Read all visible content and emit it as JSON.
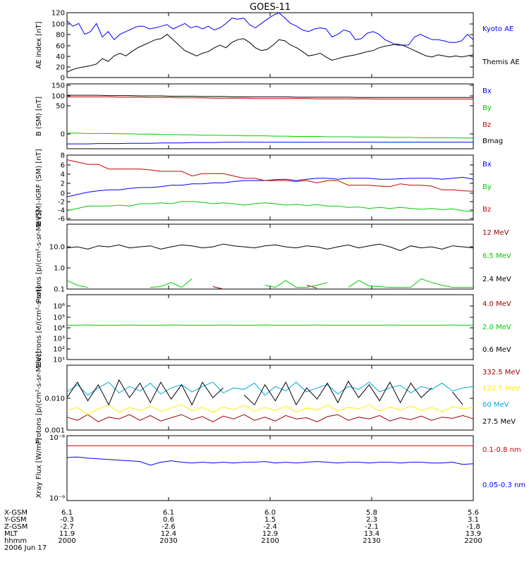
{
  "title": "GOES-11",
  "colors": {
    "black": "#000000",
    "blue": "#0000ff",
    "green": "#00cc00",
    "red": "#cc0000",
    "darkred": "#990000",
    "yellow": "#ffee00",
    "cyan": "#00aadd"
  },
  "x_axis": {
    "ticks": [
      "2000",
      "2030",
      "2100",
      "2130",
      "2200"
    ],
    "range_hhmm": [
      2000,
      2200
    ],
    "row_labels": [
      "X-GSM",
      "Y-GSM",
      "Z-GSM",
      "MLT",
      "hhmm",
      "2006 Jun 17"
    ],
    "rows": {
      "x_gsm": [
        "6.1",
        "6.1",
        "6.0",
        "5.8",
        "5.6"
      ],
      "y_gsm": [
        "-0.3",
        "0.6",
        "1.5",
        "2.3",
        "3.1"
      ],
      "z_gsm": [
        "-2.7",
        "-2.6",
        "-2.4",
        "-2.1",
        "-1.8"
      ],
      "mlt": [
        "11.9",
        "12.4",
        "12.9",
        "13.4",
        "13.9"
      ],
      "hhmm": [
        "2000",
        "2030",
        "2100",
        "2130",
        "2200"
      ]
    }
  },
  "chart_data": [
    {
      "type": "line",
      "ylabel": "AE index [nT]",
      "ylim": [
        0,
        120
      ],
      "yticks": [
        "0",
        "20",
        "40",
        "60",
        "80",
        "100",
        "120"
      ],
      "series": [
        {
          "name": "Kyoto AE",
          "color": "#0000ff",
          "values": [
            105,
            95,
            100,
            80,
            85,
            100,
            75,
            85,
            70,
            80,
            85,
            90,
            95,
            95,
            90,
            92,
            95,
            98,
            90,
            95,
            100,
            92,
            95,
            90,
            95,
            88,
            92,
            100,
            110,
            108,
            110,
            98,
            92,
            100,
            108,
            115,
            120,
            110,
            100,
            95,
            88,
            85,
            90,
            92,
            90,
            75,
            80,
            88,
            85,
            70,
            72,
            82,
            85,
            80,
            70,
            65,
            60,
            60,
            60,
            75,
            80,
            75,
            70,
            70,
            68,
            65,
            65,
            68,
            80,
            70
          ]
        },
        {
          "name": "Themis AE",
          "color": "#000000",
          "values": [
            10,
            15,
            18,
            20,
            22,
            25,
            35,
            30,
            40,
            45,
            40,
            48,
            55,
            60,
            65,
            70,
            72,
            80,
            70,
            60,
            50,
            45,
            40,
            45,
            48,
            55,
            60,
            55,
            65,
            70,
            72,
            65,
            55,
            50,
            52,
            60,
            70,
            68,
            60,
            55,
            48,
            40,
            42,
            45,
            38,
            32,
            35,
            38,
            40,
            42,
            45,
            48,
            50,
            55,
            58,
            60,
            62,
            60,
            55,
            50,
            45,
            40,
            38,
            42,
            40,
            38,
            40,
            38,
            40,
            42
          ]
        }
      ]
    },
    {
      "type": "line",
      "ylabel": "B (SM) [nT]",
      "ylim": [
        -50,
        150
      ],
      "yticks": [
        "0",
        "50",
        "100",
        "150"
      ],
      "series": [
        {
          "name": "Bx",
          "color": "#0000ff",
          "values": [
            -35,
            -35,
            -35,
            -34,
            -34,
            -34,
            -33,
            -33,
            -33,
            -32,
            -32,
            -32,
            -31,
            -31,
            -31,
            -30,
            -30,
            -30,
            -30,
            -30,
            -30,
            -30,
            -30,
            -30,
            -30,
            -30,
            -30,
            -30,
            -30,
            -30,
            -30,
            -30,
            -30,
            -30,
            -30,
            -30,
            -30,
            -30,
            -30,
            -30
          ]
        },
        {
          "name": "By",
          "color": "#00cc00",
          "values": [
            -2,
            -2,
            -3,
            -3,
            -3,
            -4,
            -4,
            -5,
            -5,
            -6,
            -6,
            -7,
            -7,
            -8,
            -8,
            -9,
            -9,
            -10,
            -10,
            -10,
            -11,
            -11,
            -12,
            -12,
            -12,
            -13,
            -13,
            -13,
            -14,
            -14,
            -14,
            -15,
            -15,
            -15,
            -16,
            -16,
            -16,
            -16,
            -17,
            -17
          ]
        },
        {
          "name": "Bz",
          "color": "#cc0000",
          "values": [
            110,
            110,
            110,
            110,
            110,
            109,
            109,
            109,
            108,
            108,
            108,
            107,
            107,
            107,
            106,
            106,
            106,
            106,
            105,
            105,
            105,
            105,
            105,
            105,
            104,
            104,
            104,
            104,
            104,
            104,
            103,
            103,
            103,
            103,
            103,
            103,
            103,
            103,
            103,
            103
          ]
        },
        {
          "name": "Bmag",
          "color": "#000000",
          "values": [
            115,
            115,
            115,
            115,
            114,
            114,
            114,
            113,
            113,
            113,
            112,
            112,
            112,
            111,
            111,
            111,
            110,
            110,
            110,
            110,
            110,
            110,
            109,
            109,
            109,
            109,
            109,
            109,
            108,
            108,
            108,
            108,
            108,
            108,
            108,
            108,
            108,
            108,
            108,
            108
          ]
        }
      ]
    },
    {
      "type": "line",
      "ylabel": "B (SM)-IGRF (SM) [nT]",
      "ylim": [
        -6,
        8
      ],
      "yticks": [
        "-6",
        "-4",
        "-2",
        "0",
        "2",
        "4",
        "6",
        "8"
      ],
      "series": [
        {
          "name": "Bx",
          "color": "#0000ff",
          "values": [
            -1,
            -0.5,
            0,
            0.3,
            0.5,
            0.5,
            0.8,
            1,
            1,
            1.2,
            1.5,
            1.5,
            1.8,
            1.8,
            2,
            2,
            2.3,
            2.5,
            2.5,
            2.5,
            2.7,
            2.8,
            2.5,
            2.8,
            3,
            3,
            2.8,
            3,
            3,
            3,
            2.8,
            2.8,
            2.9,
            3,
            3,
            3,
            2.8,
            3,
            3.2,
            2.8
          ]
        },
        {
          "name": "By",
          "color": "#00cc00",
          "values": [
            -4,
            -3.5,
            -3,
            -3,
            -3,
            -2.8,
            -3,
            -2.5,
            -2.5,
            -2.3,
            -2.5,
            -2,
            -2,
            -2.2,
            -2.5,
            -2.3,
            -2.5,
            -2.8,
            -2.5,
            -2.3,
            -2.5,
            -2.8,
            -2.6,
            -2.9,
            -2.7,
            -3,
            -3,
            -3.3,
            -3.2,
            -3.5,
            -3.3,
            -3.5,
            -3.3,
            -3.5,
            -3.7,
            -3.5,
            -3.8,
            -3.6,
            -4,
            -4.2
          ]
        },
        {
          "name": "Bz",
          "color": "#cc0000",
          "values": [
            7,
            6.5,
            6,
            6,
            5,
            5,
            5,
            5,
            4.8,
            4.5,
            4.5,
            4.5,
            3.5,
            4,
            4,
            4,
            3.5,
            3,
            3,
            2.5,
            2.5,
            2.5,
            2.3,
            2.5,
            2,
            2.5,
            2.5,
            1.5,
            1.5,
            1.5,
            1.3,
            1.2,
            1.8,
            1.5,
            1.5,
            1.3,
            0.5,
            0.5,
            0.3,
            0.2
          ]
        }
      ]
    },
    {
      "type": "line",
      "ylabel": "Protons [p/(cm²-s-sr-MeV)]",
      "yscale": "log",
      "ylim": [
        0.1,
        100
      ],
      "yticks": [
        "0.1",
        "1.0",
        "10.0"
      ],
      "series": [
        {
          "name": "12 MeV",
          "color": "#990000",
          "values": [
            null,
            null,
            null,
            null,
            null,
            null,
            null,
            null,
            null,
            null,
            null,
            null,
            null,
            null,
            0.13,
            0.1,
            null,
            null,
            null,
            0.12,
            null,
            null,
            null,
            0.15,
            0.11,
            null,
            null,
            0.12,
            null,
            null,
            null,
            null,
            null,
            null,
            null,
            null,
            null,
            null,
            null,
            null
          ]
        },
        {
          "name": "6.5 MeV",
          "color": "#00cc00",
          "values": [
            0.25,
            0.15,
            0.12,
            null,
            0.12,
            null,
            null,
            null,
            0.12,
            0.13,
            0.2,
            0.12,
            0.3,
            null,
            0.12,
            null,
            0.13,
            null,
            null,
            0.15,
            0.12,
            0.25,
            0.12,
            0.12,
            0.15,
            0.2,
            null,
            0.12,
            0.25,
            0.14,
            0.13,
            0.12,
            0.12,
            0.12,
            0.3,
            0.2,
            0.15,
            0.12,
            0.12,
            0.12
          ]
        },
        {
          "name": "2.4 MeV",
          "color": "#000000",
          "values": [
            8,
            9,
            7,
            10,
            9,
            11,
            8,
            9,
            10,
            7,
            9,
            11,
            10,
            8,
            9,
            12,
            10,
            9,
            8,
            10,
            11,
            9,
            8,
            10,
            9,
            7,
            9,
            11,
            8,
            10,
            12,
            9,
            6,
            10,
            8,
            9,
            7,
            10,
            9,
            8
          ]
        }
      ]
    },
    {
      "type": "line",
      "ylabel": "Electrons [e/(cm²-s-sr)]",
      "yscale": "log",
      "ylim": [
        10,
        1000000
      ],
      "yticks": [
        "10¹",
        "10²",
        "10³",
        "10⁴",
        "10⁵",
        "10⁶"
      ],
      "series": [
        {
          "name": "4.0 MeV",
          "color": "#990000",
          "values": []
        },
        {
          "name": "2.0 MeV",
          "color": "#00cc00",
          "values": [
            4500,
            4500,
            4600,
            4400,
            4500,
            4500,
            4550,
            4500,
            4450,
            4500,
            4600,
            4500,
            4500,
            4450,
            4500,
            4550,
            4500,
            4500,
            4500,
            4600,
            4500,
            4450,
            4500,
            4500,
            4550,
            4500,
            4500,
            4450,
            4500,
            4500,
            4500,
            4550,
            4500,
            4500,
            4450,
            4500,
            4500,
            4550,
            4500,
            4500
          ]
        },
        {
          "name": "0.6 MeV",
          "color": "#000000",
          "values": []
        }
      ]
    },
    {
      "type": "line",
      "ylabel": "Protons [p/(cm²-s-sr-MeV)]",
      "yscale": "log",
      "ylim": [
        0.001,
        0.1
      ],
      "yticks": [
        "0.001",
        "0.010"
      ],
      "series": [
        {
          "name": "332.5 MeV",
          "color": "#990000",
          "values": [
            0.0025,
            0.002,
            0.003,
            0.0018,
            0.0025,
            0.0022,
            0.003,
            0.002,
            0.0028,
            0.0019,
            0.0024,
            0.003,
            0.0021,
            0.0026,
            0.0018,
            0.0027,
            0.0022,
            0.003,
            0.002,
            0.0025,
            0.0019,
            0.0028,
            0.0022,
            0.0024,
            0.0018,
            0.0026,
            0.003,
            0.002,
            0.0025,
            0.0022,
            0.0028,
            0.0019,
            0.0024,
            0.0021,
            0.0027,
            0.002,
            0.0025,
            0.0023,
            0.0028,
            0.0022
          ]
        },
        {
          "name": "122.5 MeV",
          "color": "#ffee00",
          "values": [
            0.004,
            0.005,
            0.003,
            0.0045,
            0.006,
            0.0035,
            0.005,
            0.004,
            0.0055,
            0.0038,
            0.0048,
            0.006,
            0.004,
            0.005,
            0.0035,
            0.0052,
            0.0042,
            0.0058,
            0.0038,
            0.005,
            0.004,
            0.0055,
            0.0036,
            0.0048,
            0.0042,
            0.0058,
            0.0039,
            0.005,
            0.0045,
            0.006,
            0.0038,
            0.0052,
            0.0041,
            0.0055,
            0.004,
            0.005,
            0.0037,
            0.0053,
            0.0045,
            0.005
          ]
        },
        {
          "name": "60 MeV",
          "color": "#00aadd",
          "values": [
            0.015,
            0.025,
            0.012,
            0.02,
            0.03,
            0.014,
            0.022,
            0.016,
            0.028,
            0.013,
            0.02,
            0.025,
            0.015,
            0.022,
            0.03,
            0.014,
            0.02,
            0.018,
            0.028,
            0.012,
            0.022,
            0.016,
            0.03,
            0.015,
            0.02,
            0.025,
            0.013,
            0.022,
            0.018,
            0.03,
            0.015,
            0.02,
            0.024,
            0.014,
            0.022,
            0.018,
            0.028,
            0.016,
            0.02,
            0.022
          ]
        },
        {
          "name": "27.5 MeV",
          "color": "#000000",
          "values": [
            0.01,
            0.03,
            0.008,
            0.025,
            0.006,
            0.035,
            0.01,
            0.028,
            0.007,
            0.03,
            0.009,
            0.025,
            0.006,
            0.03,
            0.01,
            0.02,
            null,
            0.012,
            0.006,
            0.025,
            0.008,
            0.03,
            0.006,
            0.02,
            0.009,
            0.028,
            0.007,
            0.032,
            0.01,
            0.025,
            0.008,
            0.03,
            0.007,
            0.028,
            0.01,
            0.02,
            null,
            0.015,
            0.006,
            null
          ]
        }
      ]
    },
    {
      "type": "line",
      "ylabel": "Xray Flux [W/m²]",
      "yscale": "log",
      "ylim": [
        1e-09,
        1e-08
      ],
      "yticks": [
        "10⁻⁹",
        "10⁻⁸"
      ],
      "series": [
        {
          "name": "0.1-0.8 nm",
          "color": "#cc0000",
          "values": [
            7e-09,
            7e-09,
            7e-09,
            7e-09,
            7e-09,
            7e-09,
            7e-09,
            7e-09,
            7e-09,
            7e-09,
            7e-09,
            7e-09,
            7e-09,
            7e-09,
            7e-09,
            7e-09,
            7e-09,
            7e-09,
            7e-09,
            7e-09,
            7e-09,
            7e-09,
            7e-09,
            7e-09,
            7e-09,
            7e-09,
            7e-09,
            7e-09,
            7e-09,
            7e-09,
            7e-09,
            7e-09,
            7e-09,
            7e-09,
            7e-09,
            7e-09,
            7e-09,
            7e-09,
            7e-09,
            7e-09
          ]
        },
        {
          "name": "0.05-0.3 nm",
          "color": "#0000ff",
          "values": [
            4.6e-09,
            4.7e-09,
            4.5e-09,
            4.4e-09,
            4.3e-09,
            4.2e-09,
            4.1e-09,
            4e-09,
            3.5e-09,
            3.9e-09,
            4.1e-09,
            3.9e-09,
            3.8e-09,
            3.9e-09,
            3.8e-09,
            3.9e-09,
            3.8e-09,
            3.9e-09,
            3.9e-09,
            4e-09,
            3.8e-09,
            3.9e-09,
            3.8e-09,
            3.9e-09,
            4e-09,
            3.9e-09,
            3.8e-09,
            3.9e-09,
            3.9e-09,
            3.8e-09,
            3.9e-09,
            3.9e-09,
            3.8e-09,
            3.9e-09,
            3.9e-09,
            3.8e-09,
            3.8e-09,
            3.9e-09,
            3.6e-09,
            3.7e-09
          ]
        }
      ]
    }
  ]
}
